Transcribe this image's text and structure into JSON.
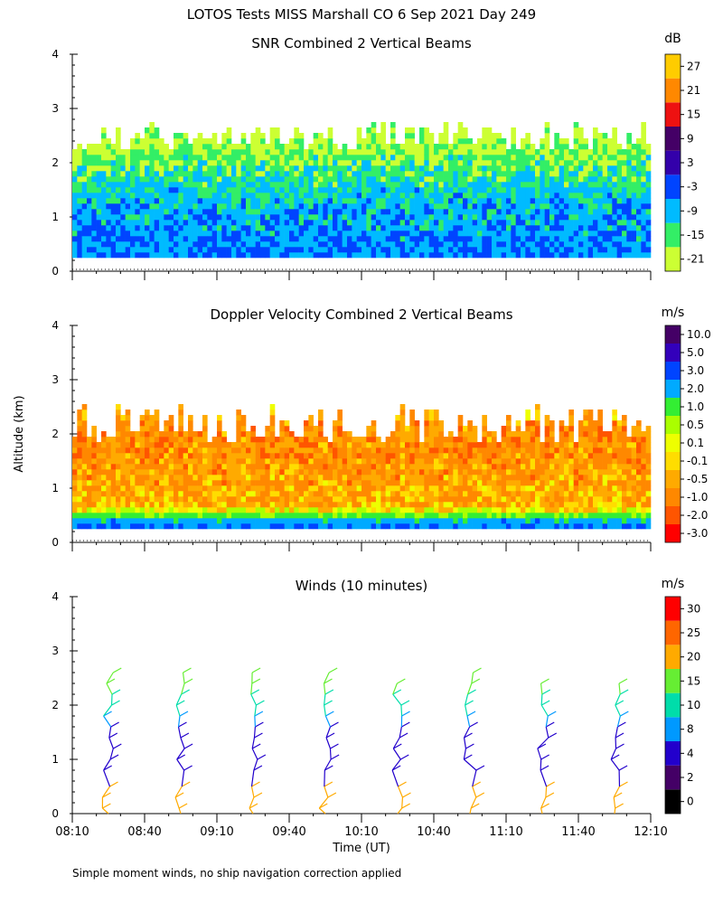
{
  "figure": {
    "title": "LOTOS Tests MISS Marshall CO   6 Sep 2021 Day 249",
    "ylabel": "Altitude (km)",
    "xlabel": "Time (UT)",
    "footnote": "Simple moment winds, no ship navigation correction applied",
    "x_ticks": [
      "08:10",
      "08:40",
      "09:10",
      "09:40",
      "10:10",
      "10:40",
      "11:10",
      "11:40",
      "12:10"
    ]
  },
  "chart_data": [
    {
      "type": "heatmap",
      "title": "SNR Combined 2 Vertical Beams",
      "ylabel": "Altitude (km)",
      "ylim": [
        0,
        4
      ],
      "y_ticks": [
        "0",
        "1",
        "2",
        "3",
        "4"
      ],
      "xlim": [
        "08:10",
        "12:10"
      ],
      "colorbar": {
        "unit": "dB",
        "labels": [
          "-21",
          "-15",
          "-9",
          "-3",
          "3",
          "9",
          "15",
          "21",
          "27"
        ],
        "colors": [
          "#ccff33",
          "#33ee66",
          "#00bbff",
          "#0044ff",
          "#3300aa",
          "#440066",
          "#ee1111",
          "#ff8800",
          "#ffcc00"
        ]
      },
      "profile": [
        {
          "altitude_km": 0.5,
          "snr_db": -3
        },
        {
          "altitude_km": 1.0,
          "snr_db": -5
        },
        {
          "altitude_km": 1.5,
          "snr_db": -9
        },
        {
          "altitude_km": 2.0,
          "snr_db": -14
        },
        {
          "altitude_km": 2.5,
          "snr_db": -19
        }
      ]
    },
    {
      "type": "heatmap",
      "title": "Doppler Velocity Combined 2 Vertical Beams",
      "ylabel": "Altitude (km)",
      "ylim": [
        0,
        4
      ],
      "y_ticks": [
        "0",
        "1",
        "2",
        "3",
        "4"
      ],
      "xlim": [
        "08:10",
        "12:10"
      ],
      "colorbar": {
        "unit": "m/s",
        "labels": [
          "-3.0",
          "-2.0",
          "-1.0",
          "-0.5",
          "-0.1",
          "0.1",
          "0.5",
          "1.0",
          "2.0",
          "3.0",
          "5.0",
          "10.0"
        ],
        "colors": [
          "#ff0000",
          "#ff5500",
          "#ff8800",
          "#ffaa00",
          "#ffdd00",
          "#eeff00",
          "#aaff00",
          "#33ee33",
          "#00aaff",
          "#0044ff",
          "#3300bb",
          "#440066"
        ]
      },
      "profile": [
        {
          "altitude_km": 0.3,
          "velocity_ms": 3.0
        },
        {
          "altitude_km": 0.6,
          "velocity_ms": -0.3
        },
        {
          "altitude_km": 1.0,
          "velocity_ms": -0.4
        },
        {
          "altitude_km": 1.5,
          "velocity_ms": -0.6
        },
        {
          "altitude_km": 2.0,
          "velocity_ms": -0.7
        },
        {
          "altitude_km": 2.4,
          "velocity_ms": -0.3
        }
      ]
    },
    {
      "type": "scatter",
      "title": "Winds (10 minutes)",
      "ylabel": "Altitude (km)",
      "xlabel": "Time (UT)",
      "ylim": [
        0,
        4
      ],
      "y_ticks": [
        "0",
        "1",
        "2",
        "3",
        "4"
      ],
      "xlim": [
        "08:10",
        "12:10"
      ],
      "colorbar": {
        "unit": "m/s",
        "labels": [
          "0",
          "2",
          "4",
          "8",
          "10",
          "15",
          "20",
          "25",
          "30"
        ],
        "colors": [
          "#000000",
          "#440066",
          "#2200cc",
          "#0099ff",
          "#00ddaa",
          "#66ee33",
          "#ffaa00",
          "#ff6600",
          "#ff0000"
        ]
      },
      "profile_times": [
        "08:40",
        "09:10",
        "09:40",
        "10:10",
        "10:40",
        "11:10",
        "11:40",
        "12:10"
      ],
      "profile_top_km": [
        2.6,
        2.6,
        2.8,
        2.9,
        2.5,
        2.6,
        2.5,
        2.5
      ],
      "levels": [
        {
          "altitude_km": 0.1,
          "speed_ms": 20
        },
        {
          "altitude_km": 0.3,
          "speed_ms": 20
        },
        {
          "altitude_km": 0.5,
          "speed_ms": 20
        },
        {
          "altitude_km": 0.8,
          "speed_ms": 4
        },
        {
          "altitude_km": 1.0,
          "speed_ms": 4
        },
        {
          "altitude_km": 1.2,
          "speed_ms": 4
        },
        {
          "altitude_km": 1.4,
          "speed_ms": 6
        },
        {
          "altitude_km": 1.6,
          "speed_ms": 6
        },
        {
          "altitude_km": 1.8,
          "speed_ms": 8
        },
        {
          "altitude_km": 2.0,
          "speed_ms": 10
        },
        {
          "altitude_km": 2.2,
          "speed_ms": 12
        },
        {
          "altitude_km": 2.4,
          "speed_ms": 15
        },
        {
          "altitude_km": 2.6,
          "speed_ms": 18
        }
      ]
    }
  ]
}
